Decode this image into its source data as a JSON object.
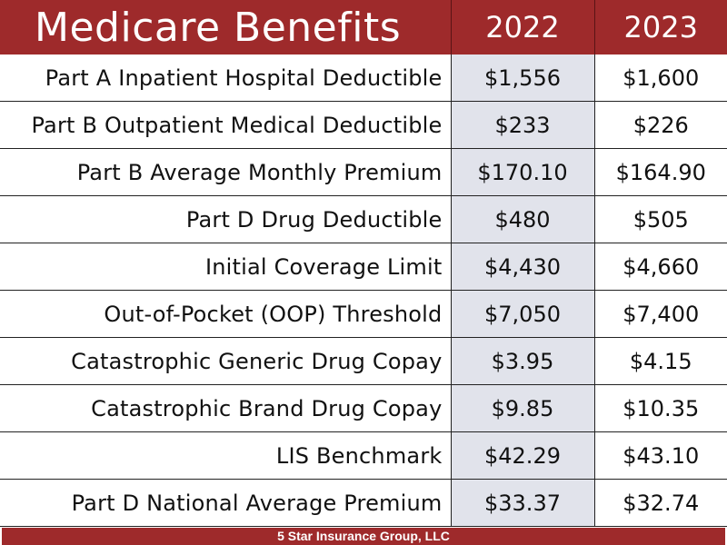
{
  "header": {
    "title": "Medicare Benefits",
    "year_1": "2022",
    "year_2": "2023"
  },
  "rows": [
    {
      "label": "Part A Inpatient Hospital Deductible",
      "v2022": "$1,556",
      "v2023": "$1,600"
    },
    {
      "label": "Part B Outpatient Medical Deductible",
      "v2022": "$233",
      "v2023": "$226"
    },
    {
      "label": "Part B Average Monthly Premium",
      "v2022": "$170.10",
      "v2023": "$164.90"
    },
    {
      "label": "Part D Drug Deductible",
      "v2022": "$480",
      "v2023": "$505"
    },
    {
      "label": "Initial Coverage Limit",
      "v2022": "$4,430",
      "v2023": "$4,660"
    },
    {
      "label": "Out-of-Pocket (OOP) Threshold",
      "v2022": "$7,050",
      "v2023": "$7,400"
    },
    {
      "label": "Catastrophic Generic Drug Copay",
      "v2022": "$3.95",
      "v2023": "$4.15"
    },
    {
      "label": "Catastrophic Brand Drug Copay",
      "v2022": "$9.85",
      "v2023": "$10.35"
    },
    {
      "label": "LIS Benchmark",
      "v2022": "$42.29",
      "v2023": "$43.10"
    },
    {
      "label": "Part D National Average Premium",
      "v2022": "$33.37",
      "v2023": "$32.74"
    }
  ],
  "footer": {
    "text": "5 Star Insurance Group, LLC"
  },
  "colors": {
    "header_bg": "#9e2a2b",
    "col_2022_bg": "#e1e3eb"
  }
}
